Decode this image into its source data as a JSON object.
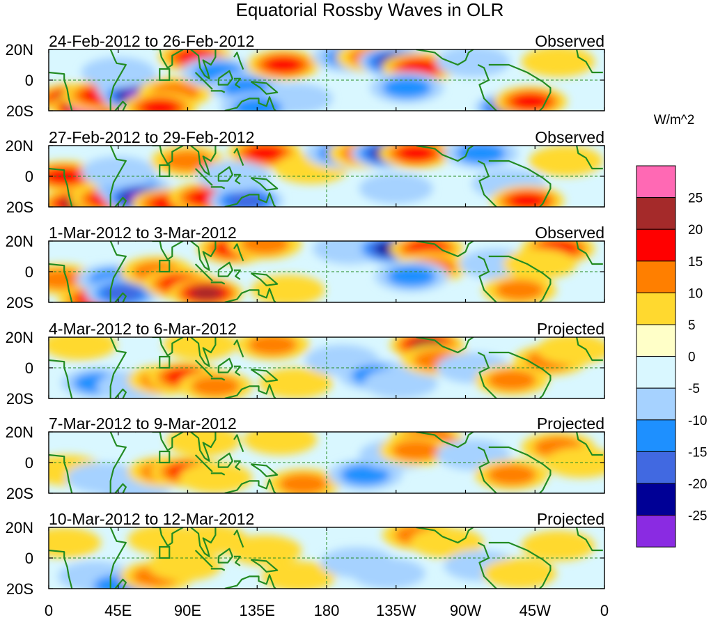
{
  "title": "Equatorial Rossby Waves in OLR",
  "panels": [
    {
      "date_range": "24-Feb-2012 to 26-Feb-2012",
      "status": "Observed"
    },
    {
      "date_range": "27-Feb-2012 to 29-Feb-2012",
      "status": "Observed"
    },
    {
      "date_range": "1-Mar-2012 to 3-Mar-2012",
      "status": "Observed"
    },
    {
      "date_range": "4-Mar-2012 to 6-Mar-2012",
      "status": "Projected"
    },
    {
      "date_range": "7-Mar-2012 to 9-Mar-2012",
      "status": "Projected"
    },
    {
      "date_range": "10-Mar-2012 to 12-Mar-2012",
      "status": "Projected"
    }
  ],
  "lat_labels": [
    "20N",
    "0",
    "20S"
  ],
  "lon_labels": [
    "0",
    "45E",
    "90E",
    "135E",
    "180",
    "135W",
    "90W",
    "45W",
    "0"
  ],
  "colorbar": {
    "unit": "W/m^2",
    "labels": [
      "25",
      "20",
      "15",
      "10",
      "5",
      "0",
      "-5",
      "-10",
      "-15",
      "-20",
      "-25"
    ],
    "colors": [
      "#ff69b4",
      "#a52a2a",
      "#ff0000",
      "#ff7f00",
      "#ffd92f",
      "#ffffc8",
      "#d9f7ff",
      "#a6d2ff",
      "#1e90ff",
      "#4169e1",
      "#000096",
      "#8a2be2"
    ]
  },
  "map_colors": {
    "coast": "#228b22",
    "grid": "#228b22"
  },
  "anomalies": [
    [
      {
        "lon": 15,
        "lat": -12,
        "level": 4
      },
      {
        "lon": 25,
        "lat": -18,
        "level": 6
      },
      {
        "lon": 33,
        "lat": -10,
        "level": 3
      },
      {
        "lon": 55,
        "lat": -5,
        "level": -3
      },
      {
        "lon": 58,
        "lat": -10,
        "level": -5
      },
      {
        "lon": 45,
        "lat": 5,
        "level": -1
      },
      {
        "lon": 95,
        "lat": 15,
        "level": 3
      },
      {
        "lon": 82,
        "lat": -8,
        "level": 2
      },
      {
        "lon": 72,
        "lat": -18,
        "level": 3
      },
      {
        "lon": 110,
        "lat": 5,
        "level": -2
      },
      {
        "lon": 128,
        "lat": -5,
        "level": -2
      },
      {
        "lon": 152,
        "lat": 10,
        "level": 3
      },
      {
        "lon": 160,
        "lat": -12,
        "level": -1
      },
      {
        "lon": 135,
        "lat": -18,
        "level": -2
      },
      {
        "lon": 195,
        "lat": 15,
        "level": -2
      },
      {
        "lon": 210,
        "lat": 15,
        "level": 2
      },
      {
        "lon": 225,
        "lat": 12,
        "level": -4
      },
      {
        "lon": 240,
        "lat": 8,
        "level": 3
      },
      {
        "lon": 232,
        "lat": -5,
        "level": -2
      },
      {
        "lon": 275,
        "lat": 12,
        "level": -1
      },
      {
        "lon": 300,
        "lat": -18,
        "level": -4
      },
      {
        "lon": 312,
        "lat": -14,
        "level": 3
      },
      {
        "lon": 330,
        "lat": 12,
        "level": 1
      }
    ],
    [
      {
        "lon": 10,
        "lat": 0,
        "level": 3
      },
      {
        "lon": 18,
        "lat": -18,
        "level": 4
      },
      {
        "lon": 38,
        "lat": -15,
        "level": 3
      },
      {
        "lon": 55,
        "lat": -8,
        "level": -3
      },
      {
        "lon": 60,
        "lat": -14,
        "level": -5
      },
      {
        "lon": 45,
        "lat": 3,
        "level": -1
      },
      {
        "lon": 78,
        "lat": -18,
        "level": 3
      },
      {
        "lon": 102,
        "lat": -14,
        "level": 3
      },
      {
        "lon": 90,
        "lat": 10,
        "level": 2
      },
      {
        "lon": 128,
        "lat": -16,
        "level": -3
      },
      {
        "lon": 140,
        "lat": 15,
        "level": 3
      },
      {
        "lon": 120,
        "lat": 0,
        "level": -1
      },
      {
        "lon": 170,
        "lat": 5,
        "level": 1
      },
      {
        "lon": 190,
        "lat": 15,
        "level": -2
      },
      {
        "lon": 205,
        "lat": 15,
        "level": 2
      },
      {
        "lon": 220,
        "lat": 15,
        "level": -4
      },
      {
        "lon": 238,
        "lat": 15,
        "level": 3
      },
      {
        "lon": 225,
        "lat": -8,
        "level": -1
      },
      {
        "lon": 280,
        "lat": 15,
        "level": -2
      },
      {
        "lon": 298,
        "lat": -5,
        "level": -1
      },
      {
        "lon": 310,
        "lat": -16,
        "level": 3
      },
      {
        "lon": 335,
        "lat": 10,
        "level": 1
      }
    ],
    [
      {
        "lon": 8,
        "lat": -5,
        "level": 2
      },
      {
        "lon": 30,
        "lat": -18,
        "level": 3
      },
      {
        "lon": 42,
        "lat": -5,
        "level": -2
      },
      {
        "lon": 48,
        "lat": -14,
        "level": -3
      },
      {
        "lon": 70,
        "lat": 0,
        "level": 2
      },
      {
        "lon": 85,
        "lat": -8,
        "level": 3
      },
      {
        "lon": 102,
        "lat": -14,
        "level": 4
      },
      {
        "lon": 120,
        "lat": 15,
        "level": 3
      },
      {
        "lon": 140,
        "lat": 18,
        "level": 2
      },
      {
        "lon": 155,
        "lat": -12,
        "level": 1
      },
      {
        "lon": 195,
        "lat": 15,
        "level": -1
      },
      {
        "lon": 222,
        "lat": 15,
        "level": -4
      },
      {
        "lon": 245,
        "lat": 15,
        "level": 3
      },
      {
        "lon": 248,
        "lat": 3,
        "level": 2
      },
      {
        "lon": 235,
        "lat": -3,
        "level": -2
      },
      {
        "lon": 290,
        "lat": 5,
        "level": -1
      },
      {
        "lon": 305,
        "lat": -12,
        "level": 2
      },
      {
        "lon": 330,
        "lat": 15,
        "level": 3
      },
      {
        "lon": 318,
        "lat": 5,
        "level": 1
      }
    ],
    [
      {
        "lon": 20,
        "lat": 15,
        "level": 1
      },
      {
        "lon": 32,
        "lat": -10,
        "level": -2
      },
      {
        "lon": 55,
        "lat": -12,
        "level": -1
      },
      {
        "lon": 75,
        "lat": -8,
        "level": 2
      },
      {
        "lon": 88,
        "lat": -6,
        "level": 3
      },
      {
        "lon": 108,
        "lat": -12,
        "level": 2
      },
      {
        "lon": 98,
        "lat": 15,
        "level": 1
      },
      {
        "lon": 145,
        "lat": 15,
        "level": 2
      },
      {
        "lon": 160,
        "lat": -10,
        "level": 1
      },
      {
        "lon": 190,
        "lat": 5,
        "level": -1
      },
      {
        "lon": 212,
        "lat": -5,
        "level": -2
      },
      {
        "lon": 228,
        "lat": -10,
        "level": -1
      },
      {
        "lon": 245,
        "lat": 15,
        "level": 4
      },
      {
        "lon": 252,
        "lat": 5,
        "level": 2
      },
      {
        "lon": 275,
        "lat": 0,
        "level": -1
      },
      {
        "lon": 300,
        "lat": -8,
        "level": 2
      },
      {
        "lon": 325,
        "lat": 5,
        "level": 2
      },
      {
        "lon": 340,
        "lat": 12,
        "level": 1
      }
    ],
    [
      {
        "lon": 12,
        "lat": -5,
        "level": 1
      },
      {
        "lon": 35,
        "lat": -10,
        "level": -1
      },
      {
        "lon": 55,
        "lat": -16,
        "level": -1
      },
      {
        "lon": 75,
        "lat": -6,
        "level": 2
      },
      {
        "lon": 90,
        "lat": -6,
        "level": 3
      },
      {
        "lon": 108,
        "lat": -10,
        "level": 1
      },
      {
        "lon": 100,
        "lat": 14,
        "level": 1
      },
      {
        "lon": 150,
        "lat": 15,
        "level": 1
      },
      {
        "lon": 165,
        "lat": -14,
        "level": 2
      },
      {
        "lon": 205,
        "lat": -8,
        "level": -2
      },
      {
        "lon": 225,
        "lat": 5,
        "level": -1
      },
      {
        "lon": 245,
        "lat": 15,
        "level": 3
      },
      {
        "lon": 238,
        "lat": 8,
        "level": 2
      },
      {
        "lon": 275,
        "lat": 5,
        "level": -1
      },
      {
        "lon": 300,
        "lat": -8,
        "level": 2
      },
      {
        "lon": 330,
        "lat": 10,
        "level": 2
      },
      {
        "lon": 345,
        "lat": 0,
        "level": 1
      }
    ],
    [
      {
        "lon": 10,
        "lat": 10,
        "level": 1
      },
      {
        "lon": 30,
        "lat": -12,
        "level": -1
      },
      {
        "lon": 45,
        "lat": -18,
        "level": -2
      },
      {
        "lon": 70,
        "lat": -12,
        "level": 2
      },
      {
        "lon": 88,
        "lat": -5,
        "level": 1
      },
      {
        "lon": 75,
        "lat": 12,
        "level": 1
      },
      {
        "lon": 105,
        "lat": 12,
        "level": 1
      },
      {
        "lon": 140,
        "lat": 5,
        "level": 1
      },
      {
        "lon": 162,
        "lat": -12,
        "level": 1
      },
      {
        "lon": 200,
        "lat": -3,
        "level": -1
      },
      {
        "lon": 220,
        "lat": -10,
        "level": -1
      },
      {
        "lon": 240,
        "lat": 15,
        "level": 2
      },
      {
        "lon": 258,
        "lat": 10,
        "level": 1
      },
      {
        "lon": 280,
        "lat": -5,
        "level": -1
      },
      {
        "lon": 305,
        "lat": -10,
        "level": 1
      },
      {
        "lon": 330,
        "lat": 8,
        "level": 1
      }
    ]
  ]
}
